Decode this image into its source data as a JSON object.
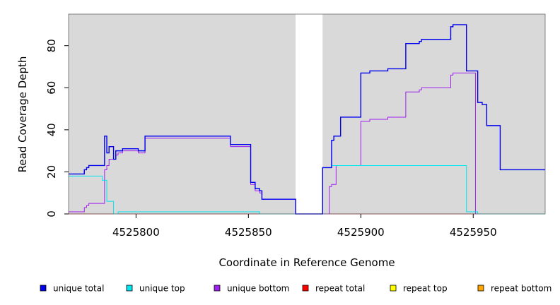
{
  "chart_data": {
    "type": "line",
    "title": "",
    "xlabel": "Coordinate in Reference Genome",
    "ylabel": "Read Coverage Depth",
    "xlim": [
      4525770,
      4525982
    ],
    "ylim": [
      0,
      95
    ],
    "x_ticks": [
      4525800,
      4525850,
      4525900,
      4525950
    ],
    "x_tick_labels": [
      "4525800",
      "4525850",
      "4525900",
      "4525950"
    ],
    "y_ticks": [
      0,
      20,
      40,
      60,
      80
    ],
    "y_tick_labels": [
      "0",
      "20",
      "40",
      "60",
      "80"
    ],
    "grid": false,
    "background": "#d9d9d9",
    "masked_region": [
      4525871,
      4525883
    ],
    "legend_position": "bottom",
    "series": [
      {
        "name": "unique total",
        "color": "#0000ee",
        "points": [
          [
            4525770,
            19
          ],
          [
            4525777,
            19
          ],
          [
            4525777,
            21
          ],
          [
            4525778,
            21
          ],
          [
            4525778,
            22
          ],
          [
            4525779,
            22
          ],
          [
            4525779,
            23
          ],
          [
            4525786,
            23
          ],
          [
            4525786,
            37
          ],
          [
            4525787,
            37
          ],
          [
            4525787,
            29
          ],
          [
            4525788,
            29
          ],
          [
            4525788,
            32
          ],
          [
            4525790,
            32
          ],
          [
            4525790,
            26
          ],
          [
            4525791,
            26
          ],
          [
            4525791,
            30
          ],
          [
            4525794,
            30
          ],
          [
            4525794,
            31
          ],
          [
            4525801,
            31
          ],
          [
            4525801,
            30
          ],
          [
            4525804,
            30
          ],
          [
            4525804,
            37
          ],
          [
            4525842,
            37
          ],
          [
            4525842,
            33
          ],
          [
            4525851,
            33
          ],
          [
            4525851,
            15
          ],
          [
            4525853,
            15
          ],
          [
            4525853,
            12
          ],
          [
            4525855,
            12
          ],
          [
            4525855,
            11
          ],
          [
            4525856,
            11
          ],
          [
            4525856,
            7
          ],
          [
            4525871,
            7
          ],
          [
            4525871,
            0
          ],
          [
            4525883,
            0
          ],
          [
            4525883,
            22
          ],
          [
            4525887,
            22
          ],
          [
            4525887,
            35
          ],
          [
            4525888,
            35
          ],
          [
            4525888,
            37
          ],
          [
            4525891,
            37
          ],
          [
            4525891,
            46
          ],
          [
            4525900,
            46
          ],
          [
            4525900,
            67
          ],
          [
            4525904,
            67
          ],
          [
            4525904,
            68
          ],
          [
            4525912,
            68
          ],
          [
            4525912,
            69
          ],
          [
            4525920,
            69
          ],
          [
            4525920,
            81
          ],
          [
            4525926,
            81
          ],
          [
            4525926,
            82
          ],
          [
            4525927,
            82
          ],
          [
            4525927,
            83
          ],
          [
            4525940,
            83
          ],
          [
            4525940,
            89
          ],
          [
            4525941,
            89
          ],
          [
            4525941,
            90
          ],
          [
            4525947,
            90
          ],
          [
            4525947,
            68
          ],
          [
            4525952,
            68
          ],
          [
            4525952,
            53
          ],
          [
            4525954,
            53
          ],
          [
            4525954,
            52
          ],
          [
            4525956,
            52
          ],
          [
            4525956,
            42
          ],
          [
            4525962,
            42
          ],
          [
            4525962,
            21
          ],
          [
            4525982,
            21
          ]
        ]
      },
      {
        "name": "unique top",
        "color": "#00e5ee",
        "points": [
          [
            4525770,
            18
          ],
          [
            4525785,
            18
          ],
          [
            4525785,
            16
          ],
          [
            4525787,
            16
          ],
          [
            4525787,
            6
          ],
          [
            4525790,
            6
          ],
          [
            4525790,
            0
          ],
          [
            4525792,
            0
          ],
          [
            4525792,
            1
          ],
          [
            4525855,
            1
          ],
          [
            4525855,
            0
          ],
          [
            4525883,
            0
          ],
          [
            4525883,
            22
          ],
          [
            4525887,
            22
          ],
          [
            4525887,
            23
          ],
          [
            4525947,
            23
          ],
          [
            4525947,
            1
          ],
          [
            4525952,
            1
          ],
          [
            4525952,
            0
          ],
          [
            4525982,
            0
          ]
        ]
      },
      {
        "name": "unique bottom",
        "color": "#a020f0",
        "points": [
          [
            4525770,
            1
          ],
          [
            4525777,
            1
          ],
          [
            4525777,
            3
          ],
          [
            4525778,
            3
          ],
          [
            4525778,
            4
          ],
          [
            4525779,
            4
          ],
          [
            4525779,
            5
          ],
          [
            4525786,
            5
          ],
          [
            4525786,
            21
          ],
          [
            4525787,
            21
          ],
          [
            4525787,
            23
          ],
          [
            4525788,
            23
          ],
          [
            4525788,
            26
          ],
          [
            4525791,
            26
          ],
          [
            4525791,
            28
          ],
          [
            4525792,
            28
          ],
          [
            4525792,
            29
          ],
          [
            4525794,
            29
          ],
          [
            4525794,
            30
          ],
          [
            4525801,
            30
          ],
          [
            4525801,
            29
          ],
          [
            4525804,
            29
          ],
          [
            4525804,
            36
          ],
          [
            4525842,
            36
          ],
          [
            4525842,
            32
          ],
          [
            4525851,
            32
          ],
          [
            4525851,
            14
          ],
          [
            4525853,
            14
          ],
          [
            4525853,
            11
          ],
          [
            4525855,
            11
          ],
          [
            4525855,
            10
          ],
          [
            4525856,
            10
          ],
          [
            4525856,
            7
          ],
          [
            4525871,
            7
          ],
          [
            4525871,
            0
          ],
          [
            4525886,
            0
          ],
          [
            4525886,
            13
          ],
          [
            4525887,
            13
          ],
          [
            4525887,
            14
          ],
          [
            4525889,
            14
          ],
          [
            4525889,
            23
          ],
          [
            4525900,
            23
          ],
          [
            4525900,
            44
          ],
          [
            4525904,
            44
          ],
          [
            4525904,
            45
          ],
          [
            4525912,
            45
          ],
          [
            4525912,
            46
          ],
          [
            4525920,
            46
          ],
          [
            4525920,
            58
          ],
          [
            4525926,
            58
          ],
          [
            4525926,
            59
          ],
          [
            4525927,
            59
          ],
          [
            4525927,
            60
          ],
          [
            4525940,
            60
          ],
          [
            4525940,
            66
          ],
          [
            4525941,
            66
          ],
          [
            4525941,
            67
          ],
          [
            4525951,
            67
          ],
          [
            4525951,
            0
          ],
          [
            4525982,
            0
          ]
        ]
      },
      {
        "name": "repeat total",
        "color": "#ff0000",
        "points": [
          [
            4525770,
            0
          ],
          [
            4525982,
            0
          ]
        ]
      },
      {
        "name": "repeat top",
        "color": "#ffff00",
        "points": [
          [
            4525770,
            0
          ],
          [
            4525982,
            0
          ]
        ]
      },
      {
        "name": "repeat bottom",
        "color": "#ffa500",
        "points": [
          [
            4525770,
            0
          ],
          [
            4525982,
            0
          ]
        ]
      }
    ]
  }
}
